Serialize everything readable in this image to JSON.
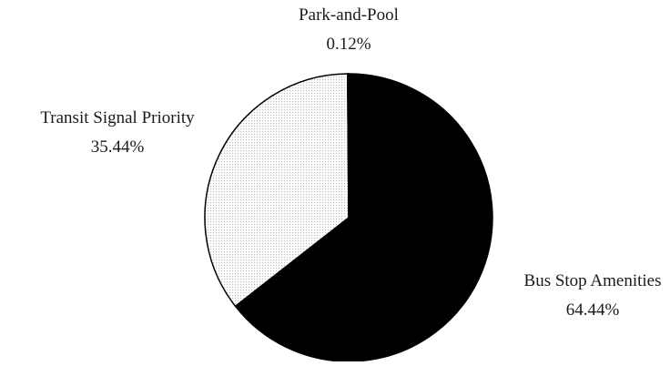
{
  "chart_data": {
    "type": "pie",
    "title": "",
    "start_angle_deg": 0,
    "direction": "clockwise",
    "slices": [
      {
        "label": "Bus Stop Amenities",
        "value": 64.44,
        "value_label": "64.44%",
        "fill": "#000000",
        "pattern": "solid"
      },
      {
        "label": "Transit Signal Priority",
        "value": 35.44,
        "value_label": "35.44%",
        "fill": "#f2f2f2",
        "pattern": "fine-dots"
      },
      {
        "label": "Park-and-Pool",
        "value": 0.12,
        "value_label": "0.12%",
        "fill": "#ffffff",
        "pattern": "none"
      }
    ],
    "legend": "none",
    "labels_outside": true
  }
}
